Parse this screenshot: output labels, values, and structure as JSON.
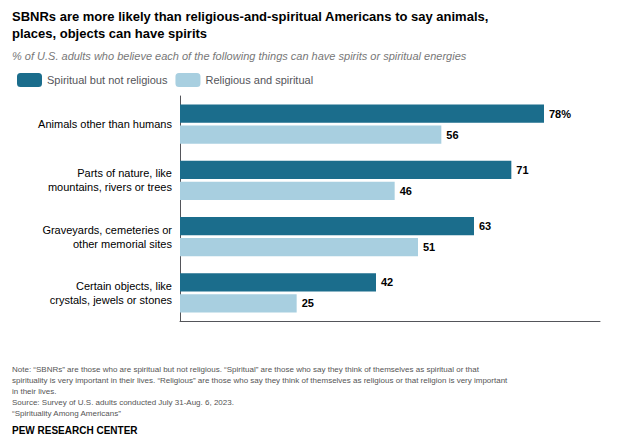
{
  "chart_data": {
    "type": "bar",
    "orientation": "horizontal",
    "title": "SBNRs are more likely than religious-and-spiritual Americans to say animals,\nplaces, objects can have spirits",
    "subtitle": "% of U.S. adults who believe each of the following things can have spirits or spiritual energies",
    "categories": [
      "Animals other than humans",
      "Parts of nature, like\nmountains, rivers or trees",
      "Graveyards, cemeteries or\nother memorial sites",
      "Certain objects, like\ncrystals, jewels or stones"
    ],
    "series": [
      {
        "name": "Spiritual but not religious",
        "color": "#1b6d8c",
        "values": [
          78,
          71,
          63,
          42
        ],
        "value_labels": [
          "78%",
          "71",
          "63",
          "42"
        ]
      },
      {
        "name": "Religious and spiritual",
        "color": "#a8cfe0",
        "values": [
          56,
          46,
          51,
          25
        ]
      }
    ],
    "xlim": [
      0,
      90
    ],
    "data_labels": true,
    "tick_labels": "y",
    "grid": false,
    "legend": "upper left",
    "annotations": [
      "Note: “SBNRs” are those who are spiritual but not religious. “Spiritual” are those who say they think of themselves as spiritual or that\nspirituality is very important in their lives. “Religious” are those who say they think of themselves as religious or that religion is very important\nin their lives.\nSource: Survey of U.S. adults conducted July 31-Aug. 6, 2023.\n“Spirituality Among Americans”",
      "PEW RESEARCH CENTER"
    ]
  }
}
